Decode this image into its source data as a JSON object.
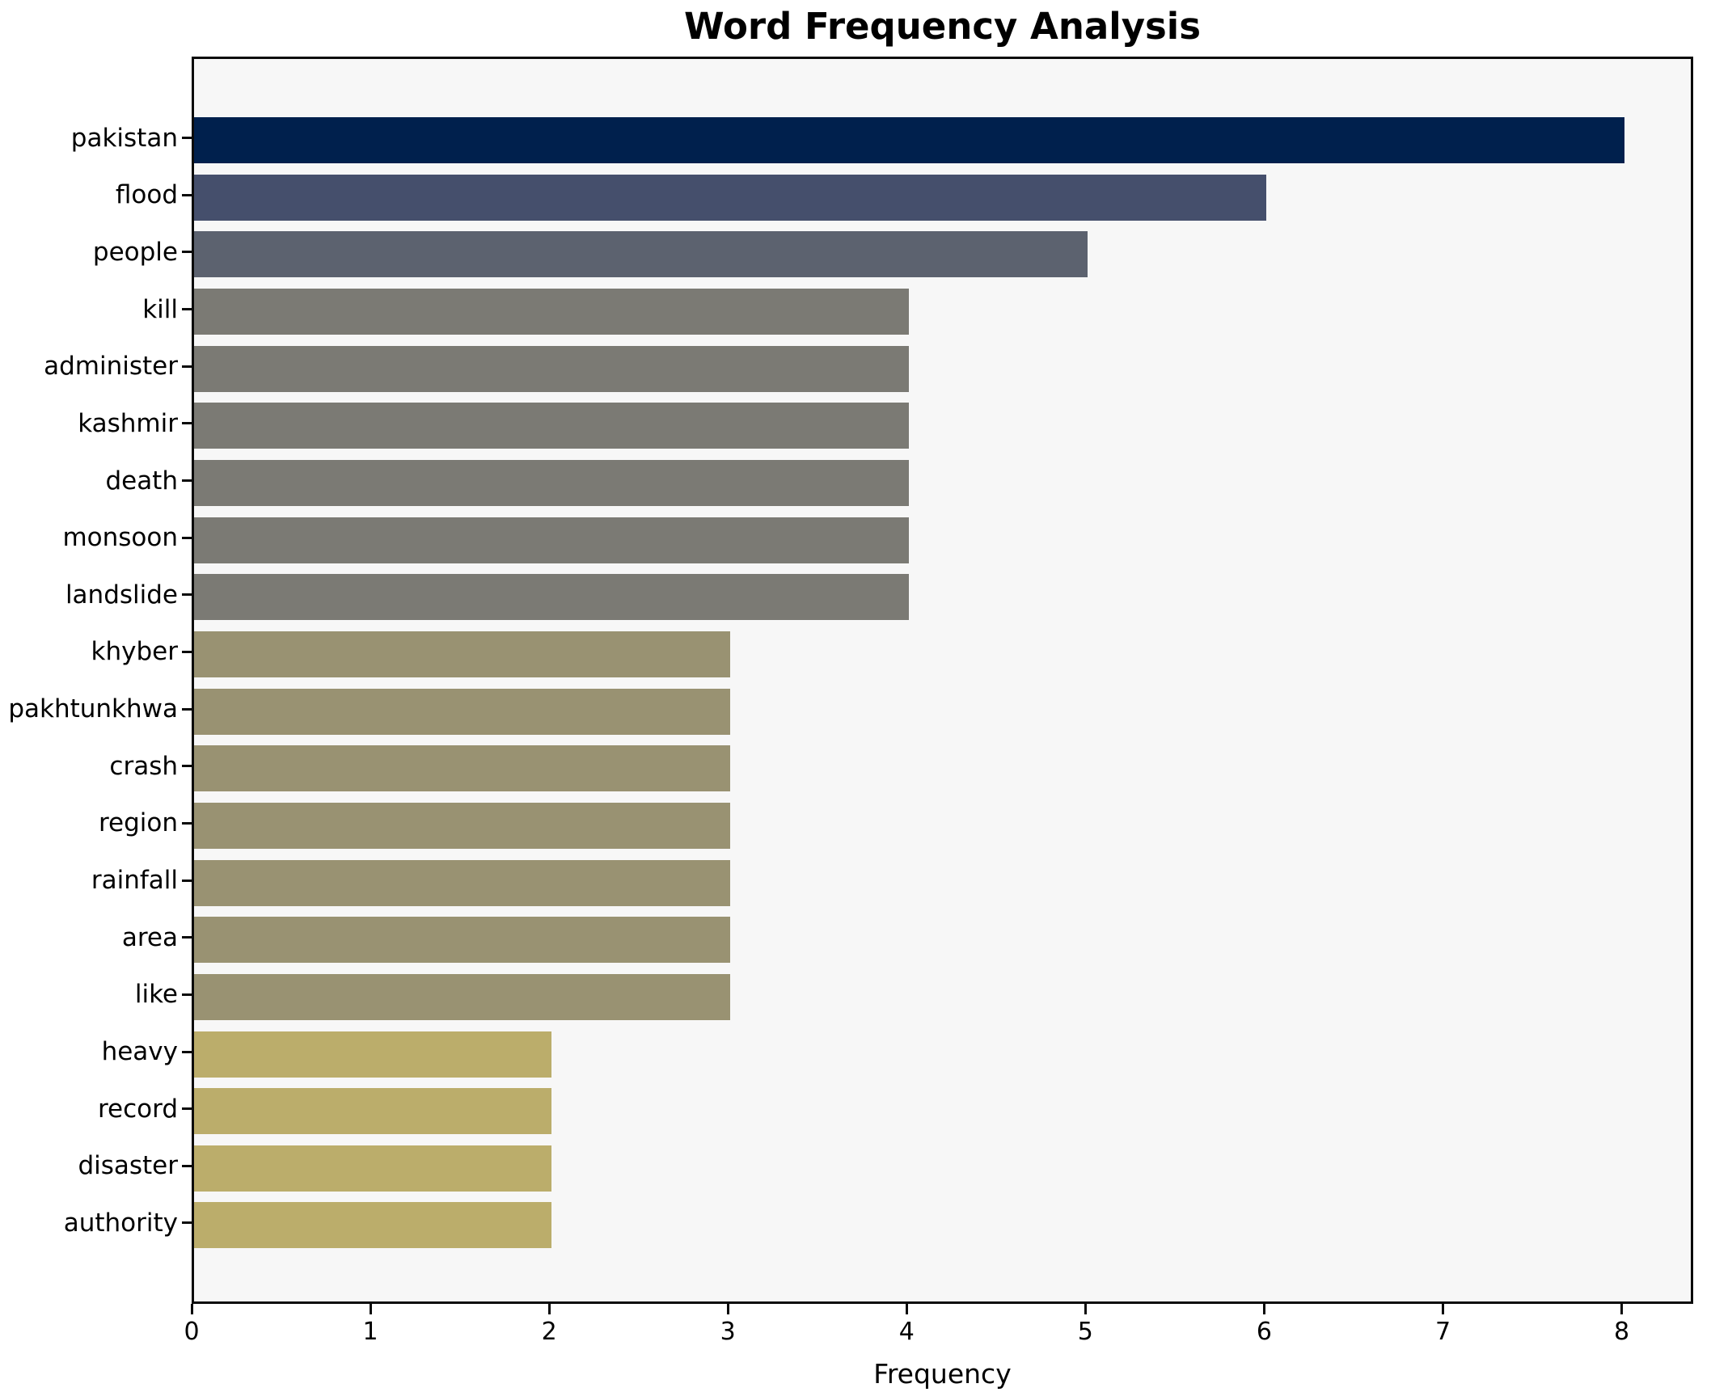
{
  "chart_data": {
    "type": "bar",
    "orientation": "horizontal",
    "title": "Word Frequency Analysis",
    "xlabel": "Frequency",
    "ylabel": "",
    "grid": false,
    "legend": null,
    "xlim": [
      0,
      8.4
    ],
    "xticks": [
      0,
      1,
      2,
      3,
      4,
      5,
      6,
      7,
      8
    ],
    "figure_bg": "#ffffff",
    "plot_bg": "#f7f7f7",
    "axis_color": "#0a0a0a",
    "categories": [
      "pakistan",
      "flood",
      "people",
      "kill",
      "administer",
      "kashmir",
      "death",
      "monsoon",
      "landslide",
      "khyber",
      "pakhtunkhwa",
      "crash",
      "region",
      "rainfall",
      "area",
      "like",
      "heavy",
      "record",
      "disaster",
      "authority"
    ],
    "values": [
      8,
      6,
      5,
      4,
      4,
      4,
      4,
      4,
      4,
      3,
      3,
      3,
      3,
      3,
      3,
      3,
      2,
      2,
      2,
      2
    ],
    "bar_colors": [
      "#00204d",
      "#454f6c",
      "#5c626f",
      "#7b7a74",
      "#7b7a74",
      "#7b7a74",
      "#7b7a74",
      "#7b7a74",
      "#7b7a74",
      "#999272",
      "#999272",
      "#999272",
      "#999272",
      "#999272",
      "#999272",
      "#999272",
      "#bbad6b",
      "#bbad6b",
      "#bbad6b",
      "#bbad6b"
    ]
  }
}
